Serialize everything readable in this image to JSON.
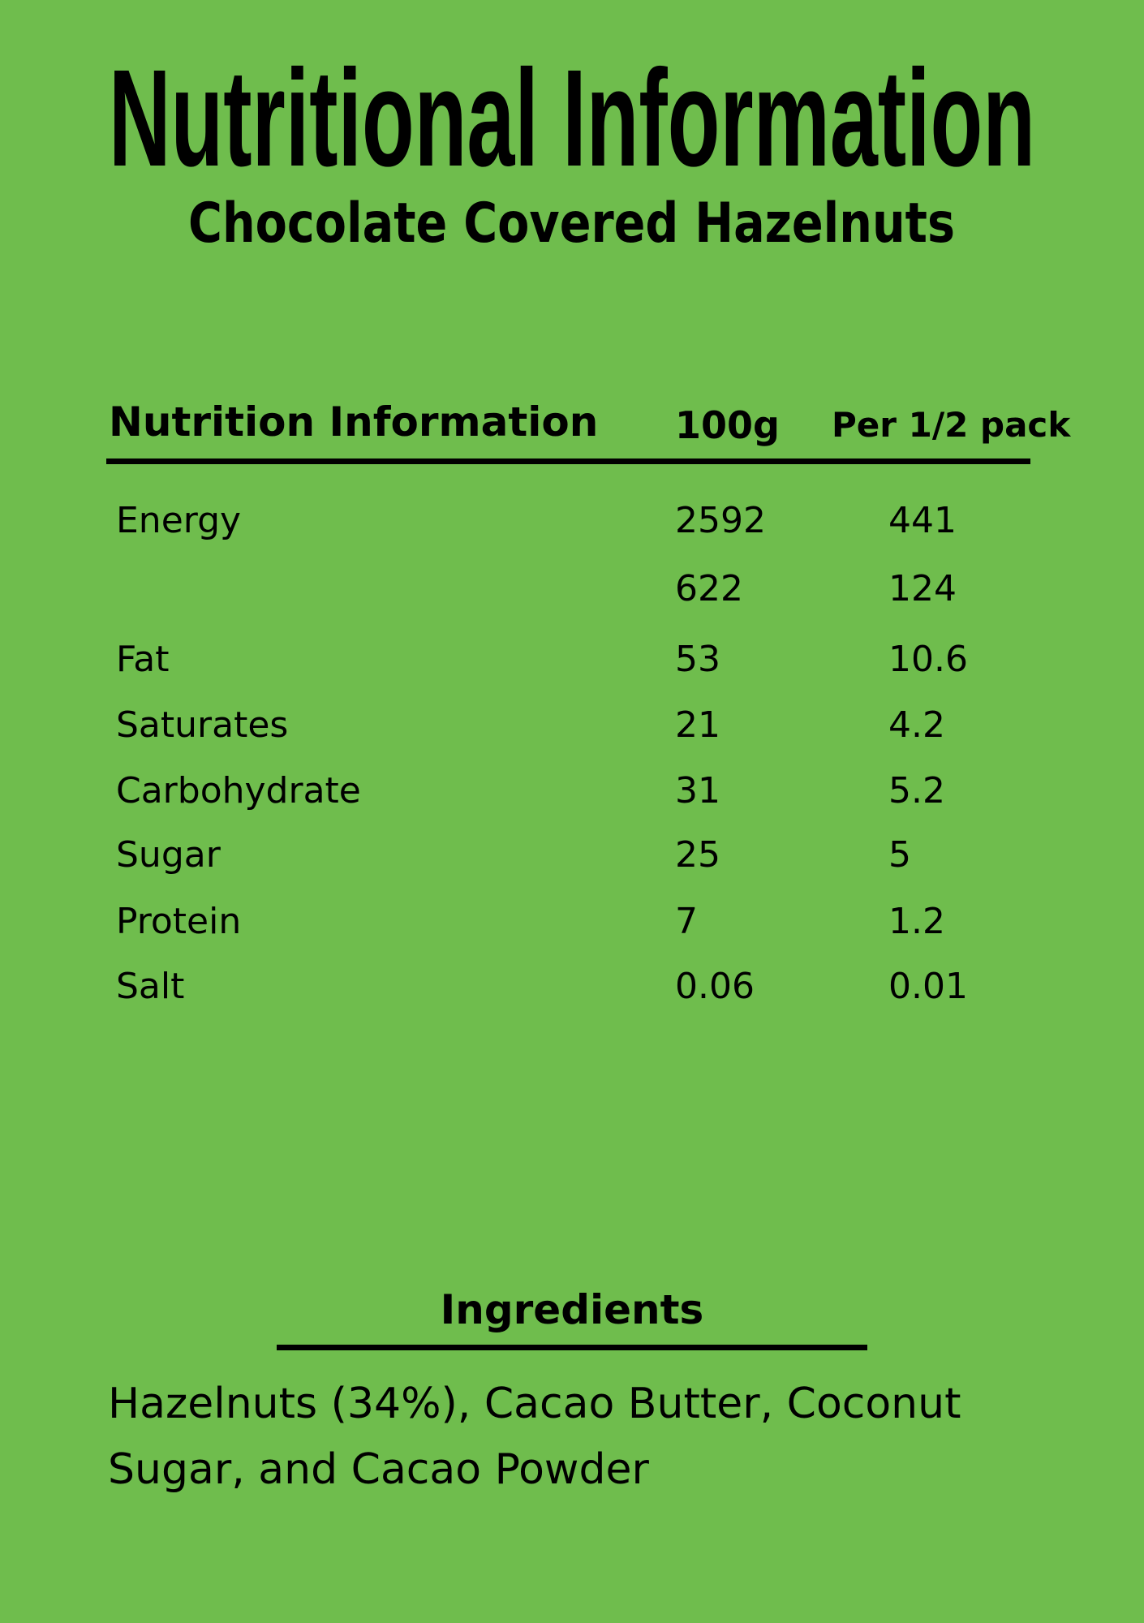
{
  "header": {
    "title": "Nutritional Information",
    "subtitle": "Chocolate Covered Hazelnuts"
  },
  "table": {
    "headers": [
      "Nutrition Information",
      "100g",
      "Per 1/2 pack"
    ],
    "rows": [
      [
        "Energy",
        "2592",
        "441"
      ],
      [
        null,
        "622",
        "124"
      ],
      [
        "Fat",
        "53",
        "10.6"
      ],
      [
        "Saturates",
        "21",
        "4.2"
      ],
      [
        "Carbohydrate",
        "31",
        "5.2"
      ],
      [
        "Sugar",
        "25",
        "5"
      ],
      [
        "Protein",
        "7",
        "1.2"
      ],
      [
        "Salt",
        "0.06",
        "0.01"
      ]
    ]
  },
  "ingredients": {
    "title": "Ingredients",
    "text": "Hazelnuts (34%), Cacao Butter, Coconut Sugar, and Cacao Powder"
  }
}
